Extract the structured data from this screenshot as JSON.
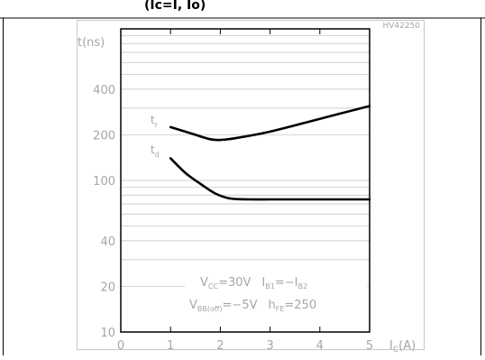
{
  "page": {
    "top_text": "(Ic=I, Io)",
    "figure_code": "HV42250"
  },
  "chart_data": {
    "type": "line",
    "ylabel": "t(ns)",
    "xlabel_main": "I",
    "xlabel_sub": "C",
    "xlabel_unit": "(A)",
    "xlim": [
      0,
      5
    ],
    "ylim": [
      10,
      1000
    ],
    "yscale": "log",
    "x_ticks": [
      0,
      1,
      2,
      3,
      4,
      5
    ],
    "x_tick_labels": [
      "0",
      "1",
      "2",
      "3",
      "4",
      "5"
    ],
    "y_ticks": [
      10,
      20,
      40,
      100,
      200,
      400
    ],
    "y_tick_labels": [
      "10",
      "20",
      "40",
      "100",
      "200",
      "400"
    ],
    "grid": true,
    "series": [
      {
        "name": "t_r",
        "label_main": "t",
        "label_sub": "r",
        "x": [
          1.0,
          1.5,
          1.8,
          2.0,
          2.3,
          3.0,
          4.0,
          5.0
        ],
        "y": [
          225,
          200,
          187,
          185,
          190,
          210,
          255,
          310
        ]
      },
      {
        "name": "t_d",
        "label_main": "t",
        "label_sub": "d",
        "x": [
          1.0,
          1.3,
          1.6,
          1.9,
          2.2,
          2.6,
          3.0,
          4.0,
          5.0
        ],
        "y": [
          140,
          112,
          95,
          82,
          76,
          75,
          75,
          75,
          75
        ]
      }
    ],
    "annotations": {
      "line1": {
        "vcc_main": "V",
        "vcc_sub": "CC",
        "vcc_value": "=30V",
        "ib1_main": "I",
        "ib1_sub": "B1",
        "ib1_mid": "=−I",
        "ib2_sub": "B2"
      },
      "line2": {
        "vbb_main": "V",
        "vbb_sub": "BB(off)",
        "vbb_value": "=−5V",
        "hfe_main": "h",
        "hfe_sub": "FE",
        "hfe_value": "=250"
      }
    },
    "colors": {
      "curve": "#000000",
      "axis_text": "#a6a6a6",
      "grid": "#bdbdbd",
      "frame": "#000000"
    }
  }
}
